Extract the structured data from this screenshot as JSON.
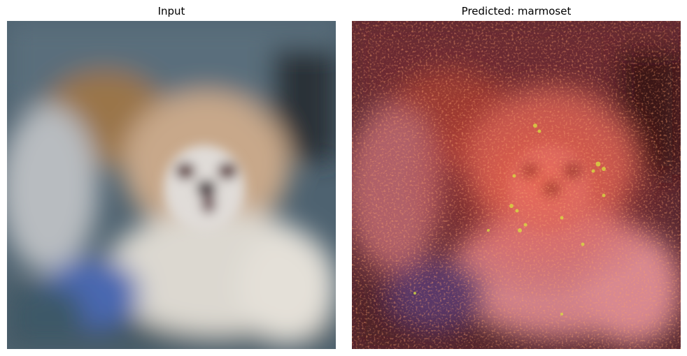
{
  "figure": {
    "left_panel": {
      "title": "Input",
      "image_description_icon": "dog-photo-image"
    },
    "right_panel": {
      "title_prefix": "Predicted: ",
      "predicted_label": "marmoset",
      "image_description_icon": "saliency-heatmap-overlay-image"
    },
    "colors": {
      "background": "#ffffff",
      "text": "#000000",
      "heat_overlay": "#c0302c",
      "hot_spot": "#d8e040"
    }
  }
}
